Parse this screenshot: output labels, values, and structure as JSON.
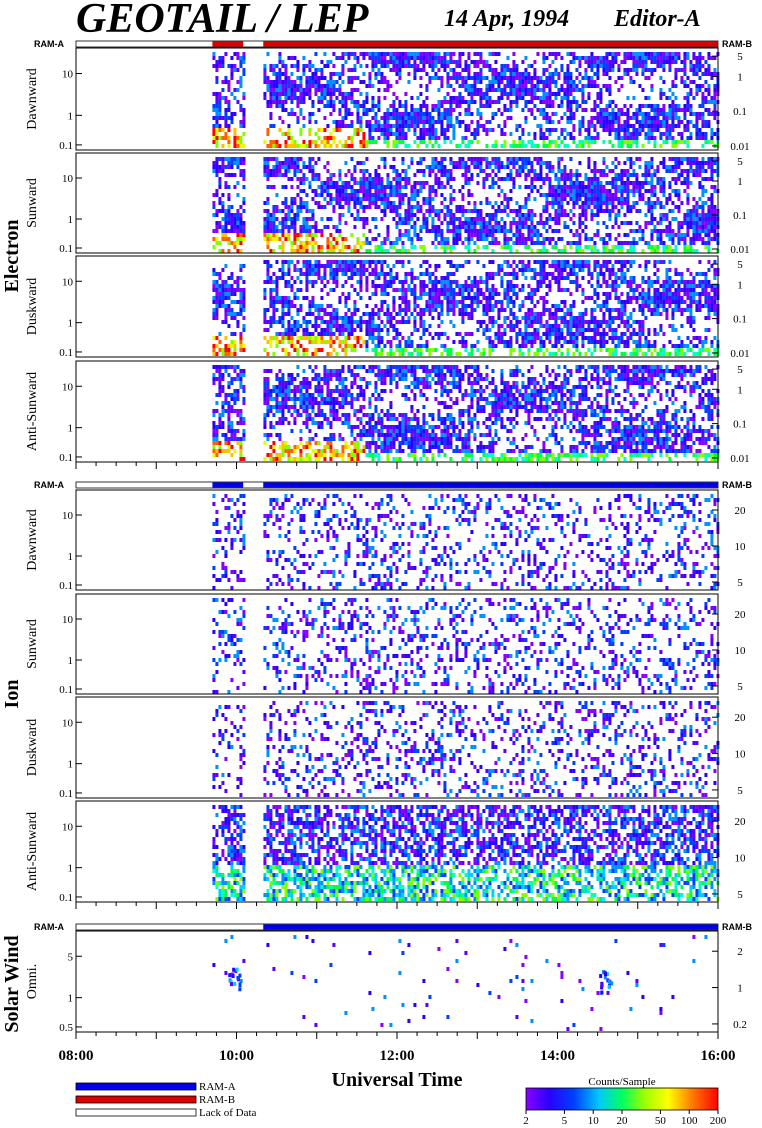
{
  "header": {
    "title": "GEOTAIL / LEP",
    "date": "14 Apr, 1994",
    "editor": "Editor-A"
  },
  "ram_labels": {
    "left": "RAM-A",
    "right": "RAM-B"
  },
  "groups": [
    {
      "name": "Electron",
      "panels": [
        {
          "label": "Dawnward"
        },
        {
          "label": "Sunward"
        },
        {
          "label": "Duskward"
        },
        {
          "label": "Anti-Sunward"
        }
      ],
      "left_ticks": [
        "10",
        "1",
        "0.1"
      ],
      "right_ticks": [
        "5",
        "1",
        "0.1",
        "0.01"
      ]
    },
    {
      "name": "Ion",
      "panels": [
        {
          "label": "Dawnward"
        },
        {
          "label": "Sunward"
        },
        {
          "label": "Duskward"
        },
        {
          "label": "Anti-Sunward"
        }
      ],
      "left_ticks": [
        "10",
        "1",
        "0.1"
      ],
      "right_ticks": [
        "20",
        "10",
        "5"
      ]
    },
    {
      "name": "Solar Wind",
      "panels": [
        {
          "label": "Omni."
        }
      ],
      "left_ticks": [
        "5",
        "1",
        "0.5"
      ],
      "right_ticks": [
        "2",
        "1",
        "0.2"
      ]
    }
  ],
  "x_axis": {
    "label": "Universal Time",
    "ticks": [
      "08:00",
      "10:00",
      "12:00",
      "14:00",
      "16:00"
    ]
  },
  "legend": {
    "items": [
      {
        "label": "RAM-A",
        "color": "#0000ee"
      },
      {
        "label": "RAM-B",
        "color": "#dd0000"
      },
      {
        "label": "Lack of Data",
        "color": "#ffffff"
      }
    ]
  },
  "colorbar": {
    "title": "Counts/Sample",
    "ticks": [
      "2",
      "5",
      "10",
      "20",
      "50",
      "100",
      "200"
    ]
  },
  "chart_data": {
    "type": "heatmap",
    "title": "GEOTAIL / LEP",
    "xlabel": "Universal Time",
    "x_range": [
      "08:00",
      "16:00"
    ],
    "log_scale": true,
    "colorbar_range": [
      2,
      200
    ],
    "ram_mode_segments": [
      {
        "group": "Electron",
        "start": "09:42",
        "end": "10:05",
        "mode": "RAM-B"
      },
      {
        "group": "Electron",
        "start": "10:05",
        "end": "10:20",
        "mode": "none"
      },
      {
        "group": "Electron",
        "start": "10:20",
        "end": "16:00",
        "mode": "RAM-B"
      },
      {
        "group": "Ion",
        "start": "09:42",
        "end": "10:05",
        "mode": "RAM-A"
      },
      {
        "group": "Ion",
        "start": "10:20",
        "end": "16:00",
        "mode": "RAM-A"
      },
      {
        "group": "Solar Wind",
        "start": "10:20",
        "end": "16:00",
        "mode": "RAM-A"
      }
    ]
  }
}
